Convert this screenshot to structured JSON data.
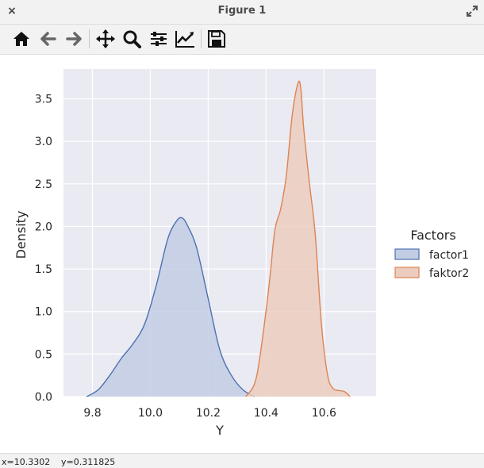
{
  "window": {
    "title": "Figure 1",
    "close_glyph": "×"
  },
  "toolbar": {
    "tools": [
      {
        "name": "home-icon",
        "label": "Home"
      },
      {
        "name": "back-icon",
        "label": "Back"
      },
      {
        "name": "forward-icon",
        "label": "Forward"
      },
      {
        "name": "pan-icon",
        "label": "Pan"
      },
      {
        "name": "zoom-icon",
        "label": "Zoom"
      },
      {
        "name": "configure-subplots-icon",
        "label": "Subplots"
      },
      {
        "name": "edit-axis-icon",
        "label": "Customize"
      },
      {
        "name": "save-icon",
        "label": "Save"
      }
    ]
  },
  "status": {
    "x_readout": "x=10.3302",
    "y_readout": "y=0.311825"
  },
  "colors": {
    "axes_background": "#eaeaf2",
    "grid": "#ffffff",
    "factor1_line": "#4c72b0",
    "factor1_fill": "#c3cce5",
    "faktor2_line": "#dd8452",
    "faktor2_fill": "#ecccbf"
  },
  "chart_data": {
    "type": "area",
    "title": "",
    "xlabel": "Y",
    "ylabel": "Density",
    "xlim": [
      9.7,
      10.78
    ],
    "ylim": [
      0,
      3.85
    ],
    "xticks": [
      9.8,
      10.0,
      10.2,
      10.4,
      10.6
    ],
    "xtick_labels": [
      "9.8",
      "10.0",
      "10.2",
      "10.4",
      "10.6"
    ],
    "yticks": [
      0.0,
      0.5,
      1.0,
      1.5,
      2.0,
      2.5,
      3.0,
      3.5
    ],
    "ytick_labels": [
      "0.0",
      "0.5",
      "1.0",
      "1.5",
      "2.0",
      "2.5",
      "3.0",
      "3.5"
    ],
    "grid": true,
    "legend": {
      "title": "Factors",
      "placement": "right, outside the axes",
      "entries": [
        "factor1",
        "faktor2"
      ]
    },
    "series": [
      {
        "name": "factor1",
        "kind": "kde",
        "x": [
          9.78,
          9.82,
          9.86,
          9.9,
          9.94,
          9.98,
          10.02,
          10.06,
          10.09,
          10.11,
          10.13,
          10.16,
          10.2,
          10.24,
          10.28,
          10.32,
          10.36
        ],
        "y": [
          0.0,
          0.08,
          0.25,
          0.45,
          0.62,
          0.85,
          1.3,
          1.85,
          2.06,
          2.1,
          2.0,
          1.75,
          1.15,
          0.55,
          0.25,
          0.08,
          0.0
        ]
      },
      {
        "name": "faktor2",
        "kind": "kde",
        "x": [
          10.33,
          10.36,
          10.38,
          10.41,
          10.43,
          10.45,
          10.47,
          10.49,
          10.51,
          10.52,
          10.53,
          10.55,
          10.57,
          10.59,
          10.61,
          10.63,
          10.67,
          10.69
        ],
        "y": [
          0.0,
          0.15,
          0.5,
          1.3,
          1.95,
          2.2,
          2.6,
          3.3,
          3.68,
          3.62,
          3.15,
          2.5,
          1.9,
          0.9,
          0.3,
          0.1,
          0.06,
          0.0
        ]
      }
    ]
  }
}
